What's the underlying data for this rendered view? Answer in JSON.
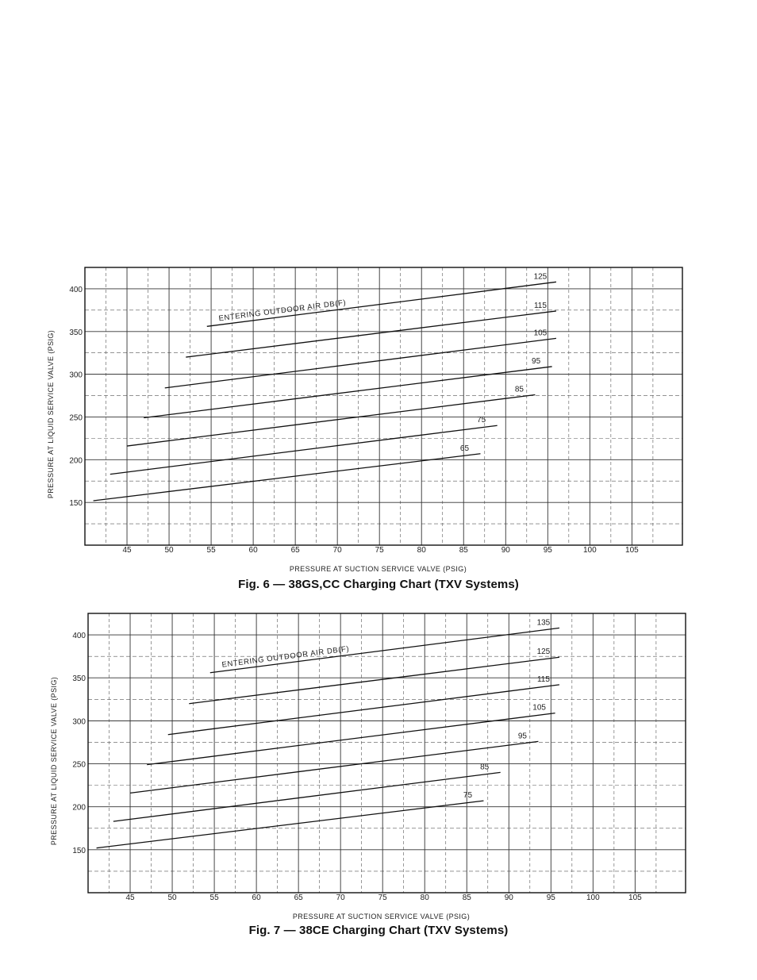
{
  "chart_data": [
    {
      "type": "line",
      "caption": "Fig. 6 — 38GS,CC Charging Chart (TXV Systems)",
      "xlabel": "PRESSURE AT SUCTION SERVICE VALVE (PSIG)",
      "ylabel": "PRESSURE AT LIQUID SERVICE VALVE (PSIG)",
      "annotation": "ENTERING OUTDOOR AIR DB(F)",
      "xlim": [
        40,
        111
      ],
      "ylim": [
        100,
        425
      ],
      "xticks": [
        45,
        50,
        55,
        60,
        65,
        70,
        75,
        80,
        85,
        90,
        95,
        100,
        105
      ],
      "xtick_labels": [
        "45",
        "50",
        "55",
        "60",
        "65",
        "70",
        "75",
        "80",
        "85",
        "90",
        "95",
        "100",
        "105"
      ],
      "yticks": [
        150,
        200,
        250,
        300,
        350,
        400
      ],
      "ytick_labels": [
        "150",
        "200",
        "250",
        "300",
        "350",
        "400"
      ],
      "grid": true,
      "series": [
        {
          "name": "125",
          "x": [
            54.5,
            96
          ],
          "y": [
            356,
            408
          ]
        },
        {
          "name": "115",
          "x": [
            52,
            96
          ],
          "y": [
            320,
            374
          ]
        },
        {
          "name": "105",
          "x": [
            49.5,
            96
          ],
          "y": [
            284,
            342
          ]
        },
        {
          "name": "95",
          "x": [
            47,
            95.5
          ],
          "y": [
            249,
            309
          ]
        },
        {
          "name": "85",
          "x": [
            45,
            93.5
          ],
          "y": [
            216,
            276
          ]
        },
        {
          "name": "75",
          "x": [
            43,
            89
          ],
          "y": [
            183,
            240
          ]
        },
        {
          "name": "65",
          "x": [
            41,
            87
          ],
          "y": [
            152,
            207
          ]
        }
      ]
    },
    {
      "type": "line",
      "caption": "Fig. 7 — 38CE Charging Chart (TXV Systems)",
      "xlabel": "PRESSURE AT SUCTION SERVICE VALVE (PSIG)",
      "ylabel": "PRESSURE AT LIQUID SERVICE VALVE (PSIG)",
      "annotation": "ENTERING OUTDOOR AIR DB(F)",
      "xlim": [
        40,
        111
      ],
      "ylim": [
        100,
        425
      ],
      "xticks": [
        45,
        50,
        55,
        60,
        65,
        70,
        75,
        80,
        85,
        90,
        95,
        100,
        105
      ],
      "xtick_labels": [
        "45",
        "50",
        "55",
        "60",
        "65",
        "70",
        "75",
        "80",
        "85",
        "90",
        "95",
        "100",
        "105"
      ],
      "yticks": [
        150,
        200,
        250,
        300,
        350,
        400
      ],
      "ytick_labels": [
        "150",
        "200",
        "250",
        "300",
        "350",
        "400"
      ],
      "grid": true,
      "series": [
        {
          "name": "135",
          "x": [
            54.5,
            96
          ],
          "y": [
            356,
            408
          ]
        },
        {
          "name": "125",
          "x": [
            52,
            96
          ],
          "y": [
            320,
            374
          ]
        },
        {
          "name": "115",
          "x": [
            49.5,
            96
          ],
          "y": [
            284,
            342
          ]
        },
        {
          "name": "105",
          "x": [
            47,
            95.5
          ],
          "y": [
            249,
            309
          ]
        },
        {
          "name": "95",
          "x": [
            45,
            93.5
          ],
          "y": [
            216,
            276
          ]
        },
        {
          "name": "85",
          "x": [
            43,
            89
          ],
          "y": [
            183,
            240
          ]
        },
        {
          "name": "75",
          "x": [
            41,
            87
          ],
          "y": [
            152,
            207
          ]
        }
      ]
    }
  ]
}
